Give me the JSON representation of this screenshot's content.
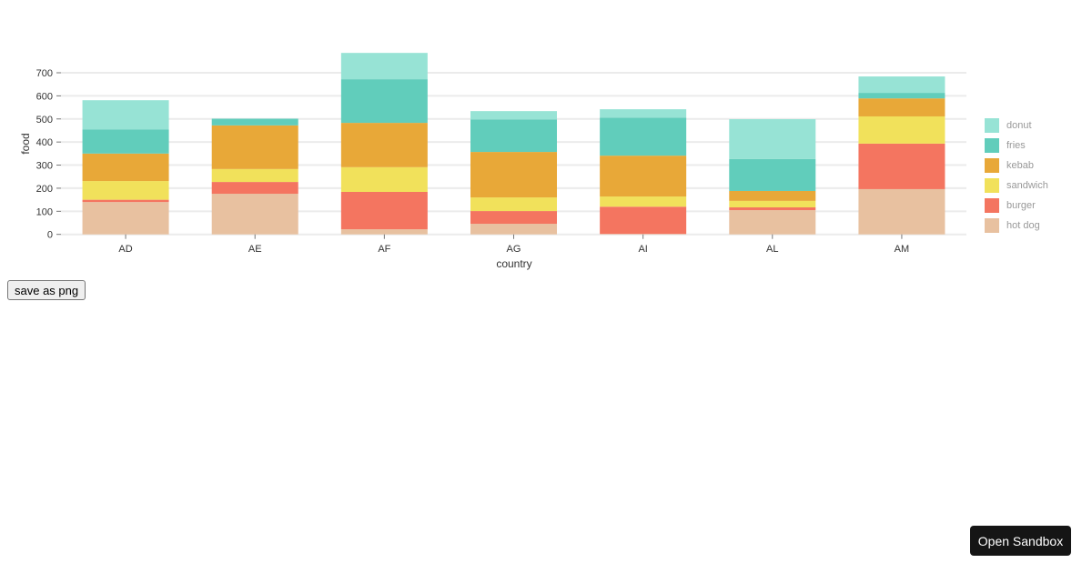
{
  "chart_data": {
    "type": "bar",
    "stacked": true,
    "title": "",
    "xlabel": "country",
    "ylabel": "food",
    "ylim": [
      0,
      700
    ],
    "yticks": [
      0,
      100,
      200,
      300,
      400,
      500,
      600,
      700
    ],
    "grid": true,
    "legend_position": "right",
    "categories": [
      "AD",
      "AE",
      "AF",
      "AG",
      "AI",
      "AL",
      "AM"
    ],
    "series": [
      {
        "name": "hot dog",
        "color": "#e8c1a0",
        "values": [
          140,
          176,
          22,
          46,
          2,
          105,
          196
        ]
      },
      {
        "name": "burger",
        "color": "#f47560",
        "values": [
          10,
          51,
          162,
          55,
          118,
          12,
          197
        ]
      },
      {
        "name": "sandwich",
        "color": "#f1e15b",
        "values": [
          81,
          56,
          107,
          59,
          44,
          28,
          118
        ]
      },
      {
        "name": "kebab",
        "color": "#e8a838",
        "values": [
          119,
          189,
          192,
          197,
          177,
          43,
          78
        ]
      },
      {
        "name": "fries",
        "color": "#61cdbb",
        "values": [
          105,
          29,
          189,
          141,
          165,
          138,
          24
        ]
      },
      {
        "name": "donut",
        "color": "#97e3d5",
        "values": [
          126,
          0,
          114,
          36,
          36,
          173,
          71
        ]
      }
    ]
  },
  "legend": {
    "items": [
      {
        "label": "donut",
        "color": "#97e3d5"
      },
      {
        "label": "fries",
        "color": "#61cdbb"
      },
      {
        "label": "kebab",
        "color": "#e8a838"
      },
      {
        "label": "sandwich",
        "color": "#f1e15b"
      },
      {
        "label": "burger",
        "color": "#f47560"
      },
      {
        "label": "hot dog",
        "color": "#e8c1a0"
      }
    ]
  },
  "buttons": {
    "save_png": "save as png",
    "open_sandbox": "Open Sandbox"
  }
}
